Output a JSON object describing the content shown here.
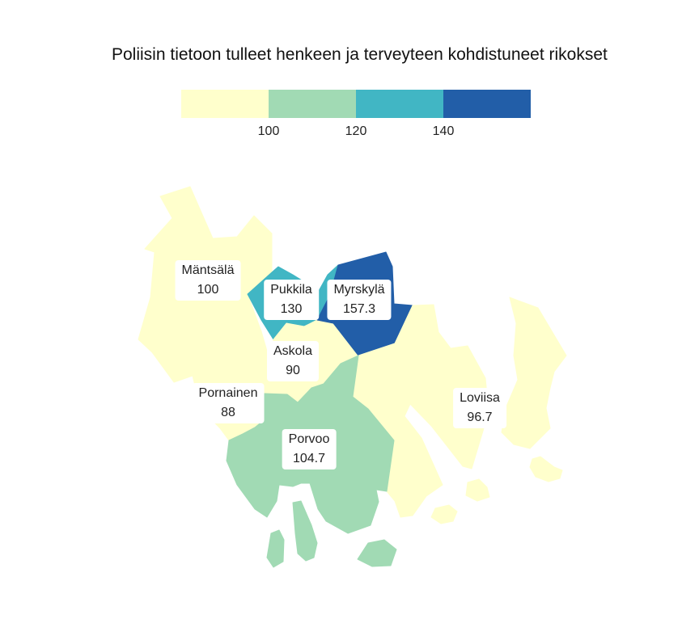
{
  "title": "Poliisin tietoon tulleet henkeen ja terveyteen kohdistuneet rikokset",
  "legend": {
    "colors": [
      "#ffffcc",
      "#a1dab4",
      "#41b6c4",
      "#225ea8"
    ],
    "ticks": [
      "100",
      "120",
      "140"
    ]
  },
  "regions": [
    {
      "name": "Mäntsälä",
      "value": "100",
      "color": "#ffffcc"
    },
    {
      "name": "Pukkila",
      "value": "130",
      "color": "#41b6c4"
    },
    {
      "name": "Myrskylä",
      "value": "157.3",
      "color": "#225ea8"
    },
    {
      "name": "Askola",
      "value": "90",
      "color": "#ffffcc"
    },
    {
      "name": "Pornainen",
      "value": "88",
      "color": "#ffffcc"
    },
    {
      "name": "Loviisa",
      "value": "96.7",
      "color": "#ffffcc"
    },
    {
      "name": "Porvoo",
      "value": "104.7",
      "color": "#a1dab4"
    }
  ]
}
